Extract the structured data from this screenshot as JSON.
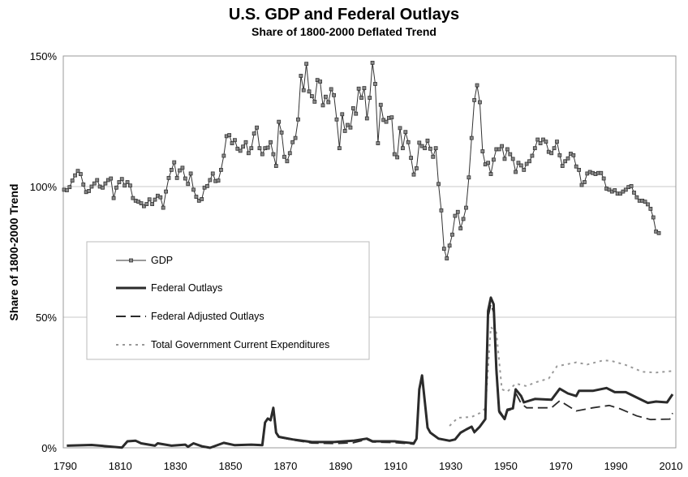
{
  "chart_data": {
    "type": "line",
    "title": "U.S. GDP and Federal Outlays",
    "subtitle": "Share of 1800-2000 Deflated Trend",
    "xlabel": "",
    "ylabel": "Share of 1800-2000 Trend",
    "xlim": [
      1789,
      2011
    ],
    "ylim": [
      0,
      150
    ],
    "x_ticks": [
      "1790",
      "1810",
      "1830",
      "1850",
      "1870",
      "1890",
      "1910",
      "1930",
      "1950",
      "1970",
      "1990",
      "2010"
    ],
    "x_tick_values": [
      1790,
      1810,
      1830,
      1850,
      1870,
      1890,
      1910,
      1930,
      1950,
      1970,
      1990,
      2010
    ],
    "y_ticks": [
      "0%",
      "50%",
      "100%",
      "150%"
    ],
    "y_tick_values": [
      0,
      50,
      100,
      150
    ],
    "grid": "horizontal",
    "legend_position": "left-middle",
    "colors": {
      "gdp": "#333333",
      "gdp_marker": "#8a8a8a",
      "outlays": "#2b2b2b",
      "adjusted": "#2b2b2b",
      "total": "#999999",
      "grid": "#c8c8c8",
      "border": "#999999"
    },
    "series": [
      {
        "name": "GDP",
        "style": "line-with-square-markers",
        "x_start": 1789,
        "values": [
          98.8,
          98.6,
          99.8,
          102.3,
          104.3,
          106.0,
          104.8,
          100.8,
          97.9,
          98.3,
          100.0,
          101.2,
          102.5,
          100.0,
          99.6,
          101.2,
          102.5,
          103.1,
          95.6,
          99.6,
          101.7,
          102.9,
          100.4,
          101.7,
          100.4,
          95.6,
          94.6,
          94.2,
          93.6,
          92.5,
          93.3,
          95.1,
          93.3,
          95.0,
          96.5,
          95.9,
          91.9,
          98.1,
          103.3,
          106.4,
          109.3,
          103.3,
          106.2,
          107.2,
          103.1,
          101.0,
          105.0,
          98.8,
          96.1,
          94.6,
          95.2,
          99.6,
          100.2,
          102.5,
          105.0,
          102.1,
          102.3,
          106.4,
          111.8,
          119.3,
          119.7,
          116.6,
          117.8,
          114.5,
          113.7,
          115.3,
          117.0,
          112.8,
          114.7,
          120.3,
          122.6,
          114.7,
          112.4,
          114.7,
          114.9,
          117.0,
          112.4,
          107.9,
          124.8,
          120.7,
          111.4,
          109.7,
          112.8,
          117.0,
          118.6,
          125.7,
          142.4,
          136.9,
          147.0,
          136.4,
          134.6,
          132.5,
          140.8,
          140.2,
          131.1,
          134.4,
          132.3,
          137.3,
          135.0,
          125.7,
          114.7,
          127.7,
          121.3,
          123.6,
          122.6,
          130.0,
          127.9,
          137.5,
          134.0,
          137.7,
          126.1,
          134.0,
          147.4,
          139.3,
          116.6,
          131.3,
          125.5,
          124.8,
          126.3,
          126.5,
          112.4,
          111.2,
          122.4,
          114.7,
          120.9,
          117.0,
          111.0,
          104.6,
          107.0,
          116.8,
          115.5,
          114.7,
          117.6,
          114.5,
          111.4,
          114.7,
          101.0,
          90.9,
          76.2,
          72.5,
          77.4,
          81.6,
          88.8,
          90.3,
          84.0,
          87.6,
          91.9,
          103.5,
          118.6,
          133.1,
          138.8,
          132.3,
          113.5,
          108.5,
          109.1,
          104.8,
          110.3,
          114.3,
          114.3,
          115.5,
          110.6,
          114.3,
          112.4,
          110.6,
          105.6,
          109.1,
          108.1,
          106.4,
          108.7,
          109.7,
          111.8,
          114.7,
          118.0,
          116.6,
          118.0,
          117.2,
          113.3,
          112.8,
          114.7,
          117.2,
          112.0,
          107.9,
          109.7,
          110.8,
          112.6,
          112.0,
          107.7,
          106.4,
          100.6,
          101.7,
          105.0,
          105.6,
          105.2,
          104.8,
          105.2,
          105.2,
          103.1,
          99.2,
          98.8,
          98.1,
          98.6,
          97.3,
          97.3,
          98.1,
          98.8,
          99.8,
          100.2,
          97.7,
          95.9,
          94.6,
          94.6,
          94.2,
          93.2,
          91.5,
          88.2,
          82.8,
          82.2
        ]
      },
      {
        "name": "Federal Outlays",
        "style": "thick-solid",
        "points": [
          [
            1790,
            0.8
          ],
          [
            1799,
            1.1
          ],
          [
            1810,
            0.1
          ],
          [
            1812,
            2.5
          ],
          [
            1815,
            2.7
          ],
          [
            1817,
            1.7
          ],
          [
            1822,
            0.8
          ],
          [
            1823,
            1.7
          ],
          [
            1828,
            0.8
          ],
          [
            1833,
            1.2
          ],
          [
            1834,
            0.4
          ],
          [
            1836,
            1.7
          ],
          [
            1839,
            0.6
          ],
          [
            1842,
            0.0
          ],
          [
            1847,
            1.9
          ],
          [
            1851,
            1.0
          ],
          [
            1857,
            1.2
          ],
          [
            1861,
            1.0
          ],
          [
            1862,
            9.7
          ],
          [
            1863,
            11.2
          ],
          [
            1864,
            10.6
          ],
          [
            1865,
            15.3
          ],
          [
            1866,
            5.8
          ],
          [
            1867,
            4.2
          ],
          [
            1872,
            3.2
          ],
          [
            1879,
            2.2
          ],
          [
            1887,
            2.2
          ],
          [
            1894,
            2.7
          ],
          [
            1899,
            3.5
          ],
          [
            1901,
            2.5
          ],
          [
            1909,
            2.5
          ],
          [
            1916,
            1.7
          ],
          [
            1917,
            3.5
          ],
          [
            1918,
            22.4
          ],
          [
            1919,
            27.7
          ],
          [
            1921,
            7.7
          ],
          [
            1922,
            5.8
          ],
          [
            1925,
            3.5
          ],
          [
            1929,
            2.7
          ],
          [
            1931,
            3.2
          ],
          [
            1933,
            5.8
          ],
          [
            1935,
            7.0
          ],
          [
            1937,
            8.1
          ],
          [
            1938,
            6.0
          ],
          [
            1940,
            8.1
          ],
          [
            1942,
            11.0
          ],
          [
            1943,
            52.4
          ],
          [
            1944,
            57.5
          ],
          [
            1945,
            55.0
          ],
          [
            1946,
            30.0
          ],
          [
            1947,
            14.1
          ],
          [
            1949,
            11.0
          ],
          [
            1950,
            14.6
          ],
          [
            1952,
            15.1
          ],
          [
            1953,
            22.4
          ],
          [
            1955,
            19.8
          ],
          [
            1956,
            17.4
          ],
          [
            1960,
            18.7
          ],
          [
            1966,
            18.4
          ],
          [
            1969,
            22.6
          ],
          [
            1972,
            20.8
          ],
          [
            1975,
            19.8
          ],
          [
            1976,
            21.8
          ],
          [
            1981,
            21.8
          ],
          [
            1986,
            22.9
          ],
          [
            1989,
            21.3
          ],
          [
            1993,
            21.3
          ],
          [
            1999,
            18.2
          ],
          [
            2001,
            17.2
          ],
          [
            2004,
            17.7
          ],
          [
            2008,
            17.4
          ],
          [
            2010,
            20.5
          ]
        ]
      },
      {
        "name": "Federal Adjusted Outlays",
        "style": "dashed",
        "points": [
          [
            1790,
            0.8
          ],
          [
            1799,
            1.1
          ],
          [
            1810,
            0.1
          ],
          [
            1812,
            2.5
          ],
          [
            1815,
            2.7
          ],
          [
            1817,
            1.7
          ],
          [
            1822,
            0.8
          ],
          [
            1823,
            1.7
          ],
          [
            1828,
            0.8
          ],
          [
            1833,
            1.2
          ],
          [
            1834,
            0.4
          ],
          [
            1836,
            1.7
          ],
          [
            1839,
            0.6
          ],
          [
            1842,
            0.0
          ],
          [
            1847,
            1.9
          ],
          [
            1851,
            1.0
          ],
          [
            1857,
            1.2
          ],
          [
            1861,
            1.0
          ],
          [
            1862,
            9.5
          ],
          [
            1863,
            11.0
          ],
          [
            1864,
            10.4
          ],
          [
            1865,
            15.0
          ],
          [
            1866,
            5.6
          ],
          [
            1867,
            4.0
          ],
          [
            1872,
            3.0
          ],
          [
            1879,
            1.8
          ],
          [
            1887,
            1.6
          ],
          [
            1894,
            1.9
          ],
          [
            1899,
            3.2
          ],
          [
            1901,
            2.2
          ],
          [
            1909,
            2.0
          ],
          [
            1916,
            1.4
          ],
          [
            1917,
            3.3
          ],
          [
            1918,
            22.0
          ],
          [
            1919,
            27.3
          ],
          [
            1921,
            7.5
          ],
          [
            1922,
            5.6
          ],
          [
            1925,
            3.4
          ],
          [
            1929,
            2.6
          ],
          [
            1931,
            3.1
          ],
          [
            1933,
            5.6
          ],
          [
            1935,
            6.8
          ],
          [
            1937,
            7.9
          ],
          [
            1938,
            5.8
          ],
          [
            1940,
            7.9
          ],
          [
            1942,
            10.8
          ],
          [
            1943,
            50.0
          ],
          [
            1944,
            55.0
          ],
          [
            1945,
            52.0
          ],
          [
            1946,
            28.0
          ],
          [
            1947,
            13.5
          ],
          [
            1949,
            10.8
          ],
          [
            1950,
            14.2
          ],
          [
            1952,
            14.8
          ],
          [
            1953,
            21.0
          ],
          [
            1955,
            17.0
          ],
          [
            1957,
            15.3
          ],
          [
            1966,
            15.3
          ],
          [
            1969,
            18.0
          ],
          [
            1975,
            14.1
          ],
          [
            1981,
            15.3
          ],
          [
            1987,
            16.2
          ],
          [
            1991,
            14.9
          ],
          [
            1997,
            12.2
          ],
          [
            2002,
            10.8
          ],
          [
            2009,
            11.0
          ],
          [
            2010,
            13.3
          ]
        ]
      },
      {
        "name": "Total Government Current Expenditures",
        "style": "dotted",
        "points": [
          [
            1929,
            8.4
          ],
          [
            1932,
            11.5
          ],
          [
            1937,
            11.8
          ],
          [
            1940,
            13.3
          ],
          [
            1942,
            15.1
          ],
          [
            1944,
            46.2
          ],
          [
            1946,
            44.1
          ],
          [
            1948,
            22.4
          ],
          [
            1950,
            21.5
          ],
          [
            1953,
            24.6
          ],
          [
            1957,
            23.6
          ],
          [
            1960,
            25.0
          ],
          [
            1965,
            26.5
          ],
          [
            1968,
            31.2
          ],
          [
            1975,
            32.7
          ],
          [
            1979,
            31.9
          ],
          [
            1985,
            33.5
          ],
          [
            1988,
            33.2
          ],
          [
            1993,
            31.7
          ],
          [
            1999,
            29.1
          ],
          [
            2004,
            28.8
          ],
          [
            2010,
            29.4
          ]
        ]
      }
    ]
  }
}
